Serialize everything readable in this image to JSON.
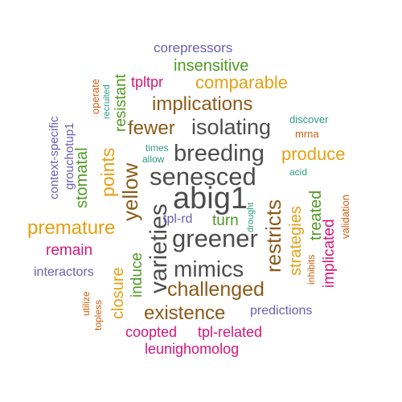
{
  "word_cloud": {
    "words": [
      {
        "text": "abig1",
        "color": "#4d4d4d"
      },
      {
        "text": "senesced",
        "color": "#4d4d4d"
      },
      {
        "text": "greener",
        "color": "#4d4d4d"
      },
      {
        "text": "varieties",
        "color": "#4d4d4d"
      },
      {
        "text": "breeding",
        "color": "#4d4d4d"
      },
      {
        "text": "isolating",
        "color": "#4d4d4d"
      },
      {
        "text": "mimics",
        "color": "#4d4d4d"
      },
      {
        "text": "restricts",
        "color": "#8c5a1a"
      },
      {
        "text": "challenged",
        "color": "#8c5a1a"
      },
      {
        "text": "existence",
        "color": "#8c5a1a"
      },
      {
        "text": "implications",
        "color": "#8c5a1a"
      },
      {
        "text": "fewer",
        "color": "#8c5a1a"
      },
      {
        "text": "yellow",
        "color": "#8c5a1a"
      },
      {
        "text": "comparable",
        "color": "#e6a012"
      },
      {
        "text": "premature",
        "color": "#e6a012"
      },
      {
        "text": "produce",
        "color": "#e6a012"
      },
      {
        "text": "points",
        "color": "#e6a012"
      },
      {
        "text": "closure",
        "color": "#e6a012"
      },
      {
        "text": "strategies",
        "color": "#e6a012"
      },
      {
        "text": "insensitive",
        "color": "#4f9a23"
      },
      {
        "text": "resistant",
        "color": "#4f9a23"
      },
      {
        "text": "stomatal",
        "color": "#4f9a23"
      },
      {
        "text": "induce",
        "color": "#4f9a23"
      },
      {
        "text": "turn",
        "color": "#4f9a23"
      },
      {
        "text": "treated",
        "color": "#4f9a23"
      },
      {
        "text": "implicated",
        "color": "#d6157a"
      },
      {
        "text": "remain",
        "color": "#d6157a"
      },
      {
        "text": "coopted",
        "color": "#d6157a"
      },
      {
        "text": "tpl-related",
        "color": "#d6157a"
      },
      {
        "text": "tpltpr",
        "color": "#d6157a"
      },
      {
        "text": "leunighomolog",
        "color": "#d6157a"
      },
      {
        "text": "corepressors",
        "color": "#6b5fb0"
      },
      {
        "text": "interactors",
        "color": "#6b5fb0"
      },
      {
        "text": "predictions",
        "color": "#6b5fb0"
      },
      {
        "text": "tpl-rd",
        "color": "#6b5fb0"
      },
      {
        "text": "context-specific",
        "color": "#6b5fb0"
      },
      {
        "text": "grouchotup1",
        "color": "#6b5fb0"
      },
      {
        "text": "operate",
        "color": "#d45f10"
      },
      {
        "text": "mrna",
        "color": "#d45f10"
      },
      {
        "text": "validation",
        "color": "#d45f10"
      },
      {
        "text": "utilize",
        "color": "#d45f10"
      },
      {
        "text": "topless",
        "color": "#d45f10"
      },
      {
        "text": "inhibits",
        "color": "#d45f10"
      },
      {
        "text": "discover",
        "color": "#2a9c7e"
      },
      {
        "text": "times",
        "color": "#2a9c7e"
      },
      {
        "text": "allow",
        "color": "#2a9c7e"
      },
      {
        "text": "acid",
        "color": "#2a9c7e"
      },
      {
        "text": "recruited",
        "color": "#2a9c7e"
      },
      {
        "text": "drought",
        "color": "#2a9c7e"
      }
    ]
  }
}
